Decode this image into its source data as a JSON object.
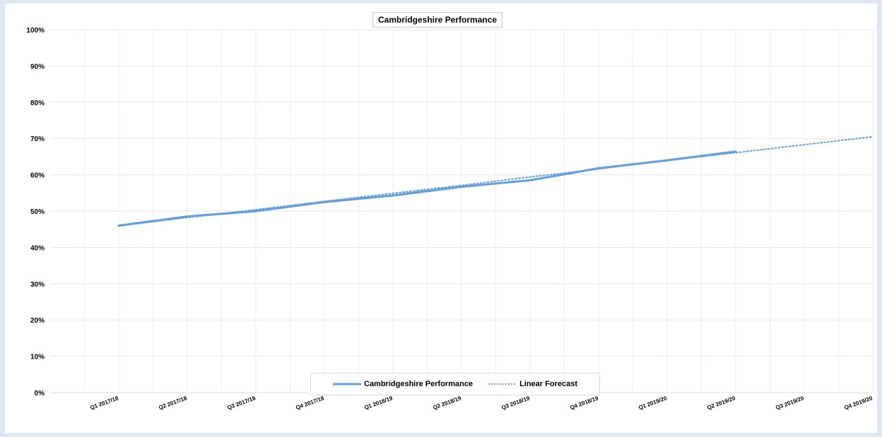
{
  "chart_data": {
    "type": "line",
    "title": "Cambridgeshire Performance",
    "categories": [
      "Q1 2017/18",
      "Q2 2017/18",
      "Q3 2017/18",
      "Q4 2017/18",
      "Q1 2018/19",
      "Q2 2018/19",
      "Q3 2018/19",
      "Q4 2018/19",
      "Q1 2019/20",
      "Q2 2019/20",
      "Q3 2019/20",
      "Q4 2019/20"
    ],
    "y_ticks": [
      "0%",
      "10%",
      "20%",
      "30%",
      "40%",
      "50%",
      "60%",
      "70%",
      "80%",
      "90%",
      "100%"
    ],
    "ylim": [
      0,
      100
    ],
    "y_unit": "%",
    "grid": true,
    "legend_position": "bottom",
    "series": [
      {
        "name": "Cambridgeshire Performance",
        "style": "solid",
        "color": "#6a9fd4",
        "values": [
          46,
          48.5,
          50,
          52.5,
          54.3,
          56.7,
          58.5,
          61.8,
          64.0,
          66.4,
          null,
          null
        ]
      },
      {
        "name": "Linear Forecast",
        "style": "dotted",
        "color": "#6a9fd4",
        "values": [
          45.9,
          48.2,
          50.4,
          52.7,
          54.9,
          57.1,
          59.4,
          61.6,
          63.9,
          66.1,
          68.3,
          70.5
        ]
      }
    ]
  }
}
